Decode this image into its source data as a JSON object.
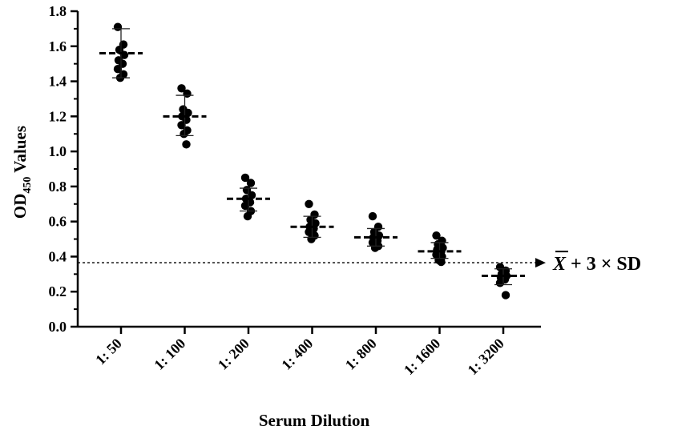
{
  "chart_data": {
    "type": "scatter",
    "xlabel": "Serum Dilution",
    "ylabel": "OD",
    "ylabel_sub": "450",
    "ylabel_suffix": " Values",
    "ylim": [
      0,
      1.8
    ],
    "yticks": [
      "0.0",
      "0.2",
      "0.4",
      "0.6",
      "0.8",
      "1.0",
      "1.2",
      "1.4",
      "1.6",
      "1.8"
    ],
    "categories": [
      "1: 50",
      "1: 100",
      "1: 200",
      "1: 400",
      "1: 800",
      "1: 1600",
      "1: 3200"
    ],
    "groups": [
      {
        "category": "1: 50",
        "mean": 1.56,
        "sd_upper": 1.7,
        "sd_lower": 1.42,
        "points": [
          1.71,
          1.61,
          1.58,
          1.55,
          1.52,
          1.5,
          1.47,
          1.44,
          1.42
        ]
      },
      {
        "category": "1: 100",
        "mean": 1.2,
        "sd_upper": 1.32,
        "sd_lower": 1.09,
        "points": [
          1.36,
          1.33,
          1.24,
          1.22,
          1.2,
          1.18,
          1.15,
          1.12,
          1.1,
          1.04
        ]
      },
      {
        "category": "1: 200",
        "mean": 0.73,
        "sd_upper": 0.79,
        "sd_lower": 0.66,
        "points": [
          0.85,
          0.82,
          0.78,
          0.75,
          0.73,
          0.71,
          0.69,
          0.66,
          0.63
        ]
      },
      {
        "category": "1: 400",
        "mean": 0.57,
        "sd_upper": 0.63,
        "sd_lower": 0.51,
        "points": [
          0.7,
          0.64,
          0.61,
          0.59,
          0.57,
          0.56,
          0.54,
          0.52,
          0.5
        ]
      },
      {
        "category": "1: 800",
        "mean": 0.51,
        "sd_upper": 0.56,
        "sd_lower": 0.46,
        "points": [
          0.63,
          0.57,
          0.54,
          0.52,
          0.51,
          0.49,
          0.48,
          0.46,
          0.45
        ]
      },
      {
        "category": "1: 1600",
        "mean": 0.43,
        "sd_upper": 0.48,
        "sd_lower": 0.39,
        "points": [
          0.52,
          0.49,
          0.47,
          0.45,
          0.44,
          0.43,
          0.41,
          0.4,
          0.38,
          0.37
        ]
      },
      {
        "category": "1: 3200",
        "mean": 0.29,
        "sd_upper": 0.33,
        "sd_lower": 0.24,
        "points": [
          0.34,
          0.32,
          0.3,
          0.29,
          0.28,
          0.27,
          0.25,
          0.18
        ]
      }
    ],
    "cutoff": {
      "value": 0.365,
      "label_xbar": "X",
      "label_rest": " + 3 × SD"
    },
    "grid": false,
    "legend": "none"
  }
}
